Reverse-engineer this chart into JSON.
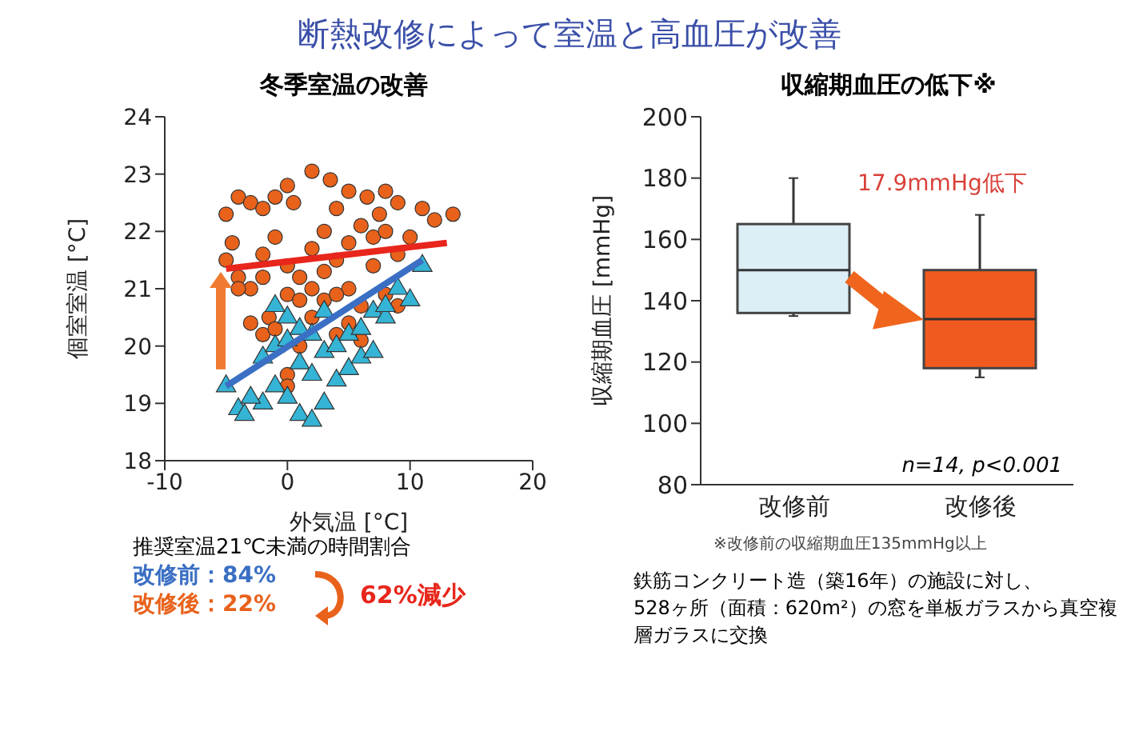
{
  "chart_data": [
    {
      "type": "other",
      "title": "断熱改修によって室温と高血圧が改善"
    },
    {
      "type": "scatter",
      "title": "冬季室温の改善",
      "xlabel": "外気温 [°C]",
      "ylabel": "個室室温 [°C]",
      "xlim": [
        -10,
        20
      ],
      "xticks": [
        -10,
        0,
        10,
        20
      ],
      "ylim": [
        18,
        24
      ],
      "yticks": [
        18,
        19,
        20,
        21,
        22,
        23,
        24
      ],
      "grid": false,
      "legend": false,
      "series": [
        {
          "type": "scatter",
          "marker": "circle",
          "color": "#e8621c",
          "x": [
            -5,
            -4.5,
            -4,
            -3,
            -2,
            -1,
            0,
            0.5,
            2,
            3.5,
            4,
            5,
            6.5,
            8,
            9,
            11,
            12,
            13.5,
            -5,
            -4,
            -3,
            -2,
            -1,
            0,
            1,
            2,
            3,
            4,
            5,
            6,
            7,
            8,
            9,
            10,
            -3,
            -2,
            -1.5,
            0,
            1,
            2,
            3,
            4,
            5,
            6,
            7.5,
            8,
            9,
            1,
            0,
            0,
            -4,
            -2,
            3,
            5,
            7,
            2,
            4,
            6,
            -1
          ],
          "values": [
            22.3,
            21.8,
            22.6,
            22.5,
            22.4,
            22.6,
            22.8,
            22.5,
            23.05,
            22.9,
            22.4,
            22.7,
            22.6,
            22.7,
            22.5,
            22.4,
            22.2,
            22.3,
            21.5,
            21.2,
            21.0,
            21.6,
            21.9,
            21.4,
            21.2,
            21.7,
            22.0,
            21.5,
            21.8,
            22.1,
            21.9,
            22.0,
            21.6,
            21.9,
            20.4,
            20.2,
            20.5,
            20.9,
            20.8,
            20.5,
            20.8,
            20.2,
            20.4,
            20.1,
            22.3,
            20.9,
            20.7,
            20.0,
            19.5,
            19.3,
            21.0,
            21.2,
            21.3,
            21.0,
            21.4,
            21.0,
            20.9,
            20.7,
            20.3
          ]
        },
        {
          "type": "scatter",
          "marker": "triangle",
          "color": "#35b4d5",
          "x": [
            -5,
            -4,
            -3.5,
            -2,
            -1,
            0,
            1,
            2,
            3,
            4,
            5,
            -3,
            -2,
            -1,
            0,
            1,
            2,
            3,
            4,
            5,
            6,
            7,
            8,
            9,
            10,
            11,
            0,
            1,
            2,
            3,
            -1,
            6,
            7,
            8
          ],
          "values": [
            19.3,
            18.9,
            18.8,
            19.0,
            19.3,
            19.1,
            18.8,
            18.7,
            19.0,
            19.4,
            19.6,
            19.1,
            19.8,
            20.0,
            20.1,
            19.7,
            19.5,
            19.9,
            20.0,
            20.2,
            20.3,
            20.6,
            20.5,
            21.0,
            20.8,
            21.4,
            20.5,
            20.3,
            20.2,
            20.6,
            20.7,
            19.8,
            19.9,
            20.7
          ]
        },
        {
          "type": "line",
          "marker": "none",
          "color": "#e8261c",
          "x": [
            -5,
            13
          ],
          "values": [
            21.35,
            21.8
          ]
        },
        {
          "type": "line",
          "marker": "none",
          "color": "#3a6fc4",
          "x": [
            -5,
            11
          ],
          "values": [
            19.3,
            21.5
          ]
        }
      ],
      "annotations": [
        "推奨室温21℃未満の時間割合",
        "改修前：84%",
        "改修後：22%",
        "62%減少"
      ]
    },
    {
      "type": "box",
      "title": "収縮期血圧の低下※",
      "ylabel": "収縮期血圧 [mmHg]",
      "categories": [
        "改修前",
        "改修後"
      ],
      "ylim": [
        80,
        200
      ],
      "yticks": [
        80,
        100,
        120,
        140,
        160,
        180,
        200
      ],
      "grid": false,
      "legend": false,
      "colors": [
        "#dceef6",
        "#f05a1e"
      ],
      "boxes": [
        {
          "low": 135,
          "q1": 136,
          "median": 150,
          "q3": 165,
          "high": 180
        },
        {
          "low": 115,
          "q1": 118,
          "median": 134,
          "q3": 150,
          "high": 168
        }
      ],
      "annotations": [
        "17.9mmHg低下",
        "n=14, p<0.001",
        "※改修前の収縮期血圧135mmHg以上",
        "鉄筋コンクリート造（築16年）の施設に対し、",
        "528ヶ所（面積：620m²）の窓を単板ガラスから真空複層ガラスに交換"
      ]
    }
  ]
}
